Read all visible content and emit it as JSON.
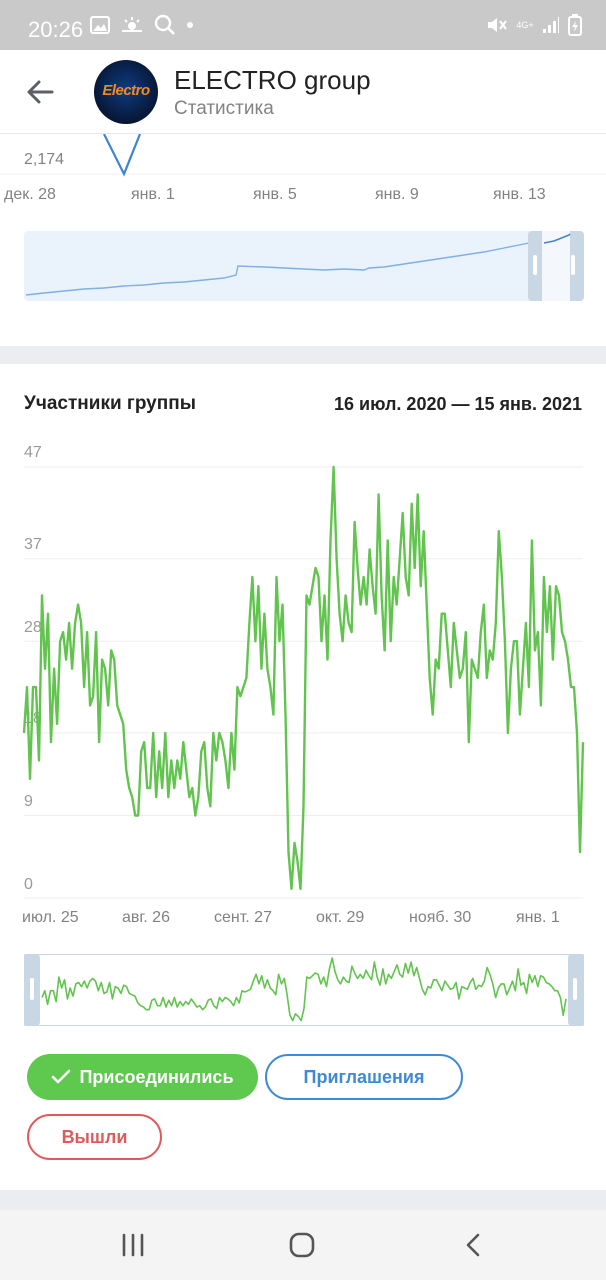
{
  "status_bar": {
    "time": "20:26",
    "network_label": "4G+",
    "icons": [
      "image-icon",
      "weather-icon",
      "search-icon",
      "dot-icon",
      "mute-icon",
      "signal-icon",
      "battery-icon"
    ]
  },
  "header": {
    "title": "ELECTRO group",
    "subtitle": "Статистика",
    "avatar_text": "Electro"
  },
  "top_chart": {
    "y_label": "2,174",
    "x_labels": [
      "дек. 28",
      "янв. 1",
      "янв. 5",
      "янв. 9",
      "янв. 13"
    ]
  },
  "members_card": {
    "title": "Участники группы",
    "date_range": "16 июл. 2020 — 15 янв. 2021"
  },
  "chart_data": {
    "type": "line",
    "ylim": [
      0,
      47
    ],
    "y_ticks": [
      "0",
      "9",
      "18",
      "28",
      "37",
      "47"
    ],
    "x_tick_labels": [
      "июл. 25",
      "авг. 26",
      "сент. 27",
      "окт. 29",
      "нояб. 30",
      "янв. 1"
    ],
    "series": [
      {
        "color": "#62c44f",
        "values": [
          18,
          23,
          13,
          23,
          23,
          15,
          33,
          25,
          31,
          17,
          25,
          19,
          28,
          29,
          26,
          30,
          25,
          30,
          32,
          30,
          23,
          29,
          21,
          22,
          29,
          17,
          26,
          25,
          21,
          27,
          26,
          21,
          20,
          19,
          14,
          12,
          11,
          9,
          9,
          16,
          17,
          12,
          12,
          18,
          11,
          16,
          12,
          18,
          11,
          15,
          12,
          15,
          13,
          17,
          14,
          11,
          12,
          9,
          11,
          16,
          17,
          12,
          10,
          18,
          15,
          18,
          17,
          15,
          12,
          18,
          14,
          23,
          22,
          23,
          24,
          30,
          35,
          28,
          34,
          25,
          31,
          25,
          23,
          20,
          35,
          28,
          32,
          20,
          5,
          1,
          6,
          4,
          1,
          10,
          33,
          32,
          34,
          36,
          35,
          28,
          33,
          26,
          39,
          47,
          37,
          31,
          28,
          33,
          30,
          29,
          41,
          36,
          32,
          35,
          32,
          38,
          34,
          31,
          44,
          33,
          27,
          39,
          28,
          35,
          32,
          37,
          42,
          35,
          33,
          43,
          36,
          44,
          34,
          40,
          32,
          24,
          20,
          26,
          25,
          31,
          31,
          27,
          23,
          30,
          27,
          24,
          25,
          29,
          17,
          26,
          25,
          24,
          29,
          32,
          24,
          27,
          26,
          30,
          40,
          35,
          28,
          18,
          25,
          28,
          28,
          20,
          25,
          30,
          23,
          39,
          27,
          29,
          21,
          35,
          29,
          34,
          26,
          34,
          33,
          29,
          28,
          26,
          23,
          23,
          18,
          5,
          17
        ]
      }
    ]
  },
  "filters": {
    "joined": "Присоединились",
    "invites": "Приглашения",
    "left": "Вышли"
  },
  "colors": {
    "accent_blue": "#3f8ad6",
    "line_green": "#62c44f",
    "pill_green": "#5fc84f",
    "danger_red": "#e05a5a",
    "separator": "#ebedf0"
  }
}
